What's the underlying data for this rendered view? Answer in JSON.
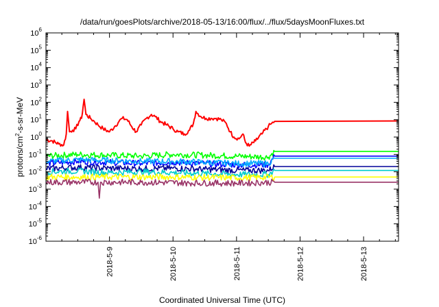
{
  "chart_data": {
    "type": "line",
    "title": "/data/run/goesPlots/archive/2018-05-13/16:00/flux/../flux/5daysMoonFluxes.txt",
    "xlabel": "Coordinated Universal Time (UTC)",
    "ylabel": {
      "base": "protons/cm",
      "sup": "2",
      "rest": "-s-sr-MeV"
    },
    "x_tick_labels": [
      "2018-5-9",
      "2018-5-10",
      "2018-5-11",
      "2018-5-12",
      "2018-5-13"
    ],
    "y_tick_exponents": [
      -6,
      -5,
      -4,
      -3,
      -2,
      -1,
      0,
      1,
      2,
      3,
      4,
      5,
      6
    ],
    "y_tick_base": "10",
    "x_range_days": [
      0,
      5.55
    ],
    "y_scale": "log",
    "ylim": [
      1e-06,
      1000000.0
    ],
    "grid": false,
    "data_end_day": 3.8,
    "series": [
      {
        "color": "#ff0000",
        "values": [
          [
            0,
            0.7
          ],
          [
            0.1,
            0.6
          ],
          [
            0.2,
            0.4
          ],
          [
            0.28,
            0.35
          ],
          [
            0.32,
            1.5
          ],
          [
            0.34,
            30
          ],
          [
            0.37,
            2
          ],
          [
            0.42,
            2.5
          ],
          [
            0.47,
            3
          ],
          [
            0.52,
            8
          ],
          [
            0.56,
            12
          ],
          [
            0.6,
            150
          ],
          [
            0.63,
            20
          ],
          [
            0.7,
            12
          ],
          [
            0.76,
            8
          ],
          [
            0.82,
            5
          ],
          [
            0.9,
            3
          ],
          [
            1.0,
            2
          ],
          [
            1.08,
            4
          ],
          [
            1.15,
            8
          ],
          [
            1.2,
            12
          ],
          [
            1.28,
            10
          ],
          [
            1.35,
            4
          ],
          [
            1.42,
            2
          ],
          [
            1.5,
            5
          ],
          [
            1.58,
            12
          ],
          [
            1.66,
            20
          ],
          [
            1.72,
            15
          ],
          [
            1.8,
            8
          ],
          [
            1.9,
            5
          ],
          [
            2.0,
            3
          ],
          [
            2.08,
            2
          ],
          [
            2.18,
            1.5
          ],
          [
            2.26,
            2.5
          ],
          [
            2.32,
            6
          ],
          [
            2.36,
            30
          ],
          [
            2.44,
            15
          ],
          [
            2.52,
            12
          ],
          [
            2.6,
            12
          ],
          [
            2.68,
            12
          ],
          [
            2.76,
            10
          ],
          [
            2.84,
            6
          ],
          [
            2.9,
            2
          ],
          [
            2.96,
            1
          ],
          [
            3.04,
            0.8
          ],
          [
            3.1,
            1.5
          ],
          [
            3.14,
            0.5
          ],
          [
            3.2,
            0.3
          ],
          [
            3.3,
            0.6
          ],
          [
            3.4,
            1.5
          ],
          [
            3.5,
            4
          ],
          [
            3.55,
            6
          ],
          [
            3.6,
            8
          ],
          [
            5.55,
            8.5
          ]
        ]
      },
      {
        "color": "#00ff00",
        "values": [
          [
            0,
            0.08
          ],
          [
            0.5,
            0.1
          ],
          [
            1,
            0.09
          ],
          [
            1.5,
            0.08
          ],
          [
            2,
            0.1
          ],
          [
            2.5,
            0.09
          ],
          [
            3,
            0.08
          ],
          [
            3.5,
            0.07
          ],
          [
            3.6,
            0.15
          ],
          [
            5.55,
            0.15
          ]
        ]
      },
      {
        "color": "#0000ff",
        "values": [
          [
            0,
            0.03
          ],
          [
            0.5,
            0.04
          ],
          [
            1,
            0.035
          ],
          [
            1.5,
            0.03
          ],
          [
            2,
            0.035
          ],
          [
            2.5,
            0.03
          ],
          [
            3,
            0.025
          ],
          [
            3.5,
            0.025
          ],
          [
            3.6,
            0.08
          ],
          [
            5.55,
            0.08
          ]
        ]
      },
      {
        "color": "#00aaff",
        "values": [
          [
            0,
            0.04
          ],
          [
            0.5,
            0.05
          ],
          [
            1,
            0.045
          ],
          [
            1.5,
            0.04
          ],
          [
            2,
            0.04
          ],
          [
            2.5,
            0.035
          ],
          [
            3,
            0.03
          ],
          [
            3.5,
            0.03
          ],
          [
            3.6,
            0.06
          ],
          [
            5.55,
            0.06
          ]
        ]
      },
      {
        "color": "#000099",
        "values": [
          [
            0,
            0.015
          ],
          [
            0.5,
            0.018
          ],
          [
            1,
            0.016
          ],
          [
            1.5,
            0.015
          ],
          [
            2,
            0.016
          ],
          [
            2.5,
            0.014
          ],
          [
            3,
            0.012
          ],
          [
            3.5,
            0.012
          ],
          [
            3.6,
            0.02
          ],
          [
            5.55,
            0.02
          ]
        ]
      },
      {
        "color": "#00cccc",
        "values": [
          [
            0,
            0.01
          ],
          [
            0.5,
            0.011
          ],
          [
            1,
            0.009
          ],
          [
            1.5,
            0.01
          ],
          [
            2,
            0.009
          ],
          [
            2.5,
            0.008
          ],
          [
            3,
            0.007
          ],
          [
            3.5,
            0.007
          ],
          [
            3.6,
            0.012
          ],
          [
            5.55,
            0.012
          ]
        ]
      },
      {
        "color": "#ffff00",
        "values": [
          [
            0,
            0.005
          ],
          [
            1,
            0.005
          ],
          [
            2,
            0.005
          ],
          [
            3,
            0.0045
          ],
          [
            3.6,
            0.005
          ],
          [
            5.55,
            0.005
          ]
        ]
      },
      {
        "color": "#993366",
        "values": [
          [
            0,
            0.0025
          ],
          [
            0.5,
            0.0025
          ],
          [
            0.82,
            0.0025
          ],
          [
            0.84,
            0.0003
          ],
          [
            0.86,
            0.0025
          ],
          [
            1.5,
            0.0025
          ],
          [
            2.2,
            0.0023
          ],
          [
            2.21,
            0.0015
          ],
          [
            2.22,
            0.0023
          ],
          [
            3,
            0.0022
          ],
          [
            3.6,
            0.0025
          ],
          [
            5.55,
            0.0025
          ]
        ]
      }
    ]
  }
}
